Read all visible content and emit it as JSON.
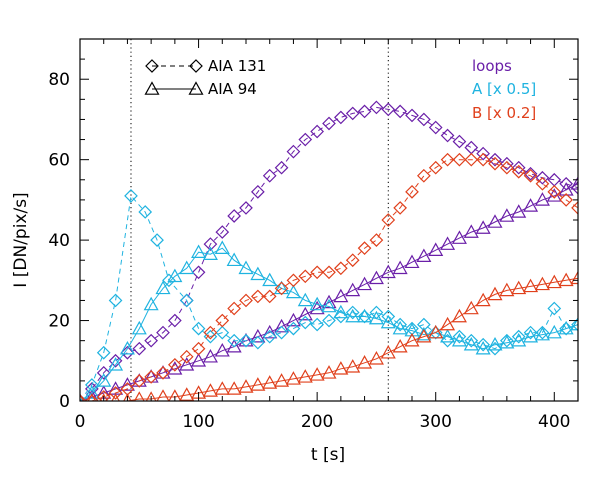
{
  "chart_data": {
    "type": "line",
    "xlabel": "t [s]",
    "ylabel": "I [DN/pix/s]",
    "xlim": [
      0,
      420
    ],
    "ylim": [
      0,
      90
    ],
    "xticks": [
      0,
      100,
      200,
      300,
      400
    ],
    "yticks": [
      0,
      20,
      40,
      60,
      80
    ],
    "vlines": [
      43,
      260
    ],
    "legend": {
      "styles": [
        {
          "label": "AIA 131",
          "marker": "diamond",
          "line": "dashed"
        },
        {
          "label": "AIA 94",
          "marker": "triangle",
          "line": "solid"
        }
      ],
      "groups": [
        {
          "label": "loops",
          "color": "#6a1fa8"
        },
        {
          "label": "A [x 0.5]",
          "color": "#1fb3e0"
        },
        {
          "label": "B [x 0.2]",
          "color": "#e0401c"
        }
      ]
    },
    "series": [
      {
        "name": "loops AIA 131",
        "color": "#6a1fa8",
        "marker": "diamond",
        "line": "dashed",
        "x": [
          0,
          10,
          20,
          30,
          40,
          50,
          60,
          70,
          80,
          90,
          100,
          110,
          120,
          130,
          140,
          150,
          160,
          170,
          180,
          190,
          200,
          210,
          220,
          230,
          240,
          250,
          260,
          270,
          280,
          290,
          300,
          310,
          320,
          330,
          340,
          350,
          360,
          370,
          380,
          390,
          400,
          410,
          420
        ],
        "y": [
          0,
          3,
          7,
          10,
          12,
          13,
          15,
          17,
          20,
          25,
          32,
          39,
          42,
          46,
          48,
          52,
          56,
          58,
          62,
          65,
          67,
          69,
          70.5,
          71.5,
          72,
          73,
          72.5,
          72,
          71,
          70,
          68,
          66,
          64.5,
          63,
          61.5,
          60,
          59,
          58,
          56.5,
          55.5,
          55,
          54,
          53
        ]
      },
      {
        "name": "loops AIA 94",
        "color": "#6a1fa8",
        "marker": "triangle",
        "line": "solid",
        "x": [
          0,
          10,
          20,
          30,
          40,
          50,
          60,
          70,
          80,
          90,
          100,
          110,
          120,
          130,
          140,
          150,
          160,
          170,
          180,
          190,
          200,
          210,
          220,
          230,
          240,
          250,
          260,
          270,
          280,
          290,
          300,
          310,
          320,
          330,
          340,
          350,
          360,
          370,
          380,
          390,
          400,
          410,
          420
        ],
        "y": [
          0,
          1,
          2,
          3,
          4,
          5,
          6,
          7,
          8,
          9,
          10,
          11,
          12.5,
          13.5,
          15,
          16,
          17,
          18.5,
          20,
          21.5,
          23,
          24.5,
          26,
          27.5,
          29,
          30.5,
          32,
          33,
          34.5,
          36,
          37.5,
          39,
          40.5,
          42,
          43,
          44.5,
          46,
          47,
          48.5,
          50,
          51,
          52.5,
          54
        ]
      },
      {
        "name": "A AIA 131",
        "color": "#1fb3e0",
        "marker": "diamond",
        "line": "dashed",
        "x": [
          0,
          10,
          20,
          30,
          43,
          55,
          65,
          75,
          90,
          100,
          110,
          120,
          130,
          140,
          150,
          160,
          170,
          180,
          190,
          200,
          210,
          220,
          230,
          240,
          250,
          260,
          270,
          280,
          290,
          300,
          310,
          320,
          330,
          340,
          350,
          360,
          370,
          380,
          390,
          400,
          410,
          420
        ],
        "y": [
          0,
          4,
          12,
          25,
          51,
          47,
          40,
          30,
          25,
          18,
          16,
          17,
          15,
          15,
          14.5,
          16,
          17,
          18,
          19.5,
          19,
          20,
          21,
          22,
          21,
          22,
          21,
          19,
          18,
          19,
          17,
          15,
          16,
          15,
          14,
          13,
          15,
          16,
          17,
          17,
          23,
          18,
          19
        ]
      },
      {
        "name": "A AIA 94",
        "color": "#1fb3e0",
        "marker": "triangle",
        "line": "solid",
        "x": [
          0,
          10,
          20,
          30,
          40,
          50,
          60,
          70,
          80,
          90,
          100,
          110,
          120,
          130,
          140,
          150,
          160,
          170,
          180,
          190,
          200,
          210,
          220,
          230,
          240,
          250,
          260,
          270,
          280,
          290,
          300,
          310,
          320,
          330,
          340,
          350,
          360,
          370,
          380,
          390,
          400,
          410,
          420
        ],
        "y": [
          0,
          2,
          5,
          9,
          13,
          18,
          24,
          28,
          31,
          33,
          37,
          36.5,
          38,
          35,
          33,
          31.5,
          30,
          28,
          27,
          25,
          24,
          23.5,
          22,
          21,
          21,
          20.5,
          19.5,
          18,
          17.5,
          16.5,
          17,
          16,
          15,
          14,
          13,
          14,
          14.5,
          15,
          16,
          16.5,
          17,
          18,
          19
        ]
      },
      {
        "name": "B AIA 131",
        "color": "#e0401c",
        "marker": "diamond",
        "line": "dashed",
        "x": [
          0,
          10,
          20,
          30,
          40,
          50,
          60,
          70,
          80,
          90,
          100,
          110,
          120,
          130,
          140,
          150,
          160,
          170,
          180,
          190,
          200,
          210,
          220,
          230,
          240,
          250,
          260,
          270,
          280,
          290,
          300,
          310,
          320,
          330,
          340,
          350,
          360,
          370,
          380,
          390,
          400,
          410,
          420
        ],
        "y": [
          0,
          0,
          1,
          2,
          3,
          5,
          6,
          7,
          9,
          11,
          13,
          17,
          20,
          23,
          25,
          26,
          26,
          28,
          30,
          31,
          32,
          32,
          33,
          35,
          38,
          40,
          45,
          48,
          52,
          56,
          58,
          60,
          60,
          60,
          60,
          59,
          58,
          57,
          56,
          54,
          52,
          50,
          48
        ]
      },
      {
        "name": "B AIA 94",
        "color": "#e0401c",
        "marker": "triangle",
        "line": "solid",
        "x": [
          0,
          10,
          20,
          30,
          40,
          50,
          60,
          70,
          80,
          90,
          100,
          110,
          120,
          130,
          140,
          150,
          160,
          170,
          180,
          190,
          200,
          210,
          220,
          230,
          240,
          250,
          260,
          270,
          280,
          290,
          300,
          310,
          320,
          330,
          340,
          350,
          360,
          370,
          380,
          390,
          400,
          410,
          420
        ],
        "y": [
          0,
          0,
          0,
          0,
          0,
          0.5,
          0.5,
          1,
          1,
          1.5,
          2,
          2.5,
          3,
          3,
          3.5,
          4,
          4.5,
          5,
          5.5,
          6,
          6.5,
          7,
          8,
          8.5,
          9.5,
          10.5,
          12,
          13.5,
          15,
          16,
          17,
          19,
          21,
          23,
          25,
          26.5,
          27.5,
          28,
          28.5,
          29,
          29.5,
          30,
          30.5
        ]
      }
    ]
  }
}
